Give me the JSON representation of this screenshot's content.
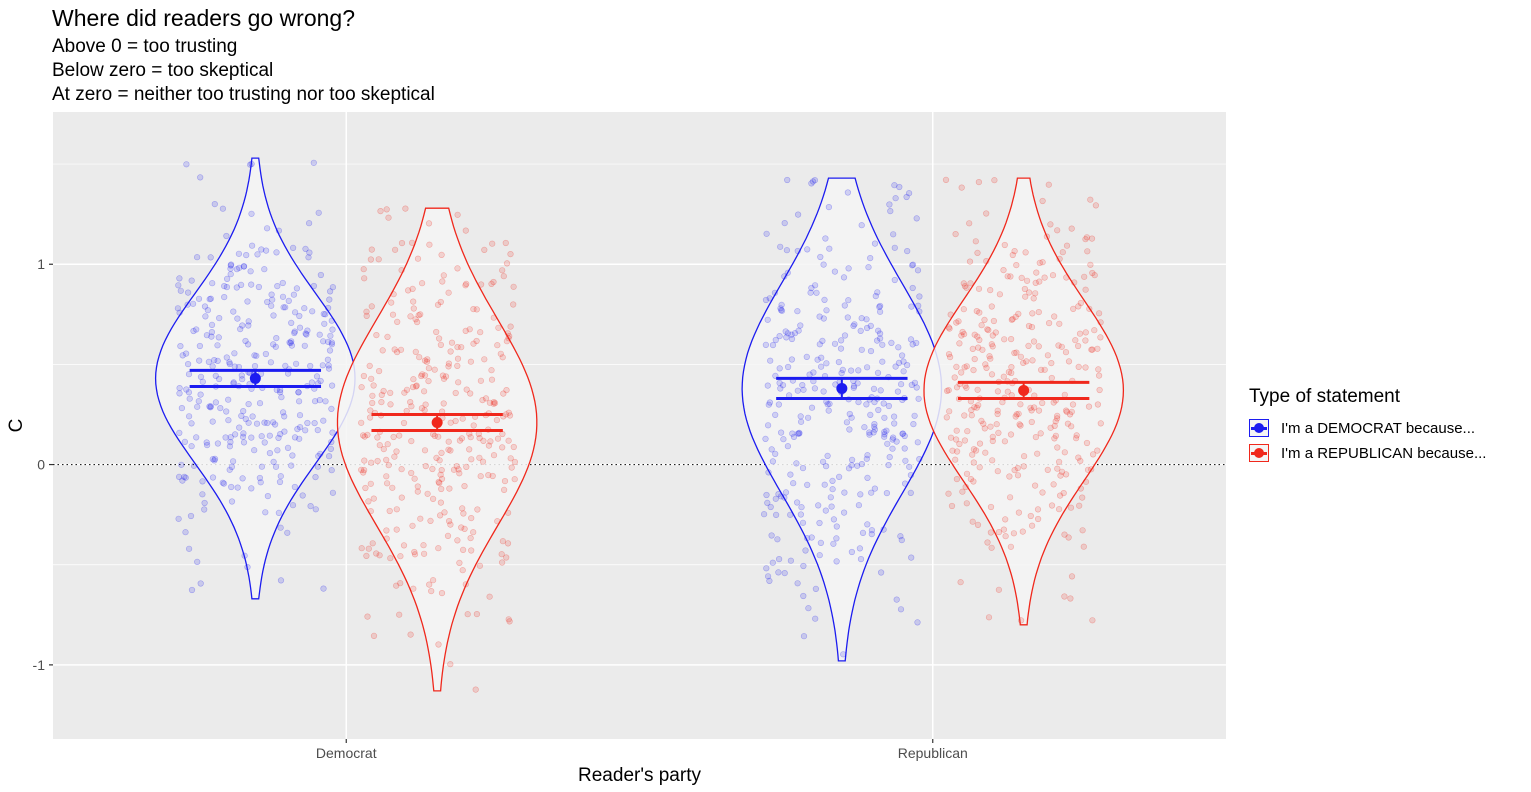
{
  "chart_data": {
    "type": "violin",
    "title": "Where did readers go wrong?",
    "subtitle_lines": [
      "Above 0 = too trusting",
      "Below zero = too skeptical",
      "At zero = neither too trusting nor too skeptical"
    ],
    "xlabel": "Reader's party",
    "ylabel": "C",
    "categories": [
      "Democrat",
      "Republican"
    ],
    "ylim": [
      -1.37,
      1.76
    ],
    "y_ticks": [
      -1,
      0,
      1
    ],
    "y_tick_labels": [
      "-1",
      "0",
      "1"
    ],
    "reference_line": {
      "y": 0,
      "style": "dotted"
    },
    "grid": true,
    "legend": {
      "title": "Type of statement",
      "placement": "right",
      "entries": [
        "I'm a DEMOCRAT because...",
        "I'm a REPUBLICAN because..."
      ]
    },
    "series": [
      {
        "name": "I'm a DEMOCRAT because...",
        "color": "#1c1cf0",
        "groups": [
          {
            "category": "Democrat",
            "mean": 0.43,
            "ci_low": 0.39,
            "ci_high": 0.47,
            "min": -0.67,
            "max": 1.53
          },
          {
            "category": "Republican",
            "mean": 0.38,
            "ci_low": 0.33,
            "ci_high": 0.43,
            "min": -0.98,
            "max": 1.43
          }
        ]
      },
      {
        "name": "I'm a REPUBLICAN because...",
        "color": "#f0281c",
        "groups": [
          {
            "category": "Democrat",
            "mean": 0.21,
            "ci_low": 0.17,
            "ci_high": 0.25,
            "min": -1.13,
            "max": 1.28
          },
          {
            "category": "Republican",
            "mean": 0.37,
            "ci_low": 0.33,
            "ci_high": 0.41,
            "min": -0.8,
            "max": 1.43
          }
        ]
      }
    ]
  }
}
